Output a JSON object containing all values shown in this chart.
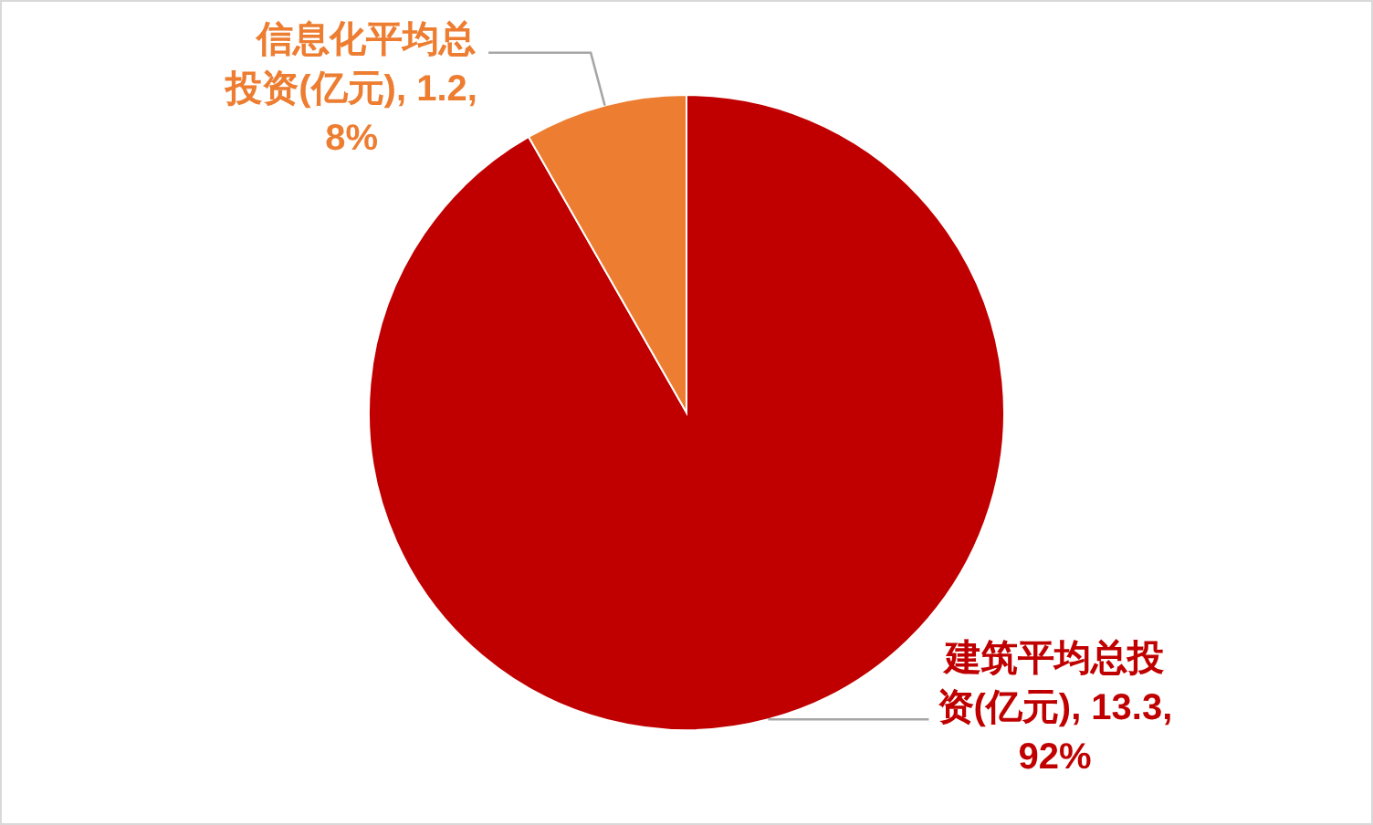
{
  "chart_data": {
    "type": "pie",
    "categories": [
      "建筑平均总投资(亿元)",
      "信息化平均总投资(亿元)"
    ],
    "values": [
      13.3,
      1.2
    ],
    "colors": [
      "#c00000",
      "#ed7d31"
    ],
    "value_labels": [
      "13.3, 92%",
      "1.2, 8%"
    ]
  }
}
